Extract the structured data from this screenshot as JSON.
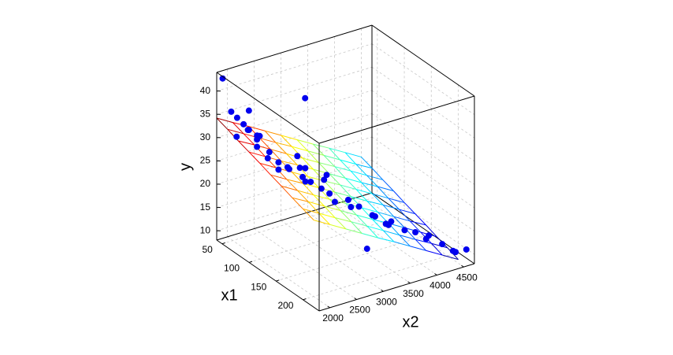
{
  "chart_data": {
    "type": "scatter3d",
    "x1label": "x1",
    "x2label": "x2",
    "ylabel": "y",
    "x1lim": [
      40,
      230
    ],
    "x2lim": [
      1800,
      4700
    ],
    "ylim": [
      8,
      44
    ],
    "x1ticks": [
      50,
      100,
      150,
      200
    ],
    "x2ticks": [
      2000,
      2500,
      3000,
      3500,
      4000,
      4500
    ],
    "yticks": [
      10,
      15,
      20,
      25,
      30,
      35,
      40
    ],
    "grid": true,
    "points": {
      "color": "#0000ee",
      "x1": [
        46,
        60,
        52,
        58,
        65,
        70,
        67,
        75,
        80,
        88,
        90,
        95,
        100,
        105,
        85,
        78,
        92,
        110,
        115,
        120,
        125,
        130,
        100,
        95,
        110,
        140,
        150,
        135,
        145,
        160,
        155,
        170,
        165,
        180,
        175,
        190,
        200,
        210,
        220,
        215,
        195,
        225,
        150,
        120,
        70,
        60,
        85
      ],
      "x2": [
        1850,
        3250,
        1950,
        2000,
        2050,
        2100,
        1900,
        2200,
        2150,
        2300,
        2250,
        2400,
        2350,
        2500,
        2100,
        2000,
        2600,
        2700,
        2800,
        2650,
        2900,
        3000,
        2750,
        2900,
        3100,
        3000,
        3200,
        3300,
        3400,
        3500,
        3600,
        3700,
        3800,
        3900,
        3600,
        4000,
        4100,
        4300,
        4400,
        4500,
        4200,
        4600,
        3500,
        2500,
        2300,
        2200,
        3400
      ],
      "y": [
        43,
        35,
        36,
        35,
        34,
        33,
        32,
        31,
        30,
        29,
        28,
        27,
        26,
        26,
        33,
        34,
        25,
        24,
        23,
        24,
        22,
        21,
        25,
        24,
        22,
        20,
        19,
        19,
        18,
        17,
        16,
        15,
        15,
        14,
        16,
        14,
        13,
        12,
        11,
        10,
        13,
        11,
        9,
        30,
        31,
        36,
        20
      ]
    },
    "surface": {
      "colormap": "jet",
      "x1": [
        40,
        60,
        80,
        100,
        120,
        140,
        160,
        180,
        200,
        220
      ],
      "x2": [
        1800,
        2100,
        2400,
        2700,
        3000,
        3300,
        3600,
        3900,
        4200,
        4500
      ],
      "y": [
        [
          34.2,
          32.2,
          30.3,
          28.3,
          26.3,
          24.3,
          22.3,
          20.4,
          18.4,
          16.4
        ],
        [
          33.4,
          31.4,
          29.4,
          27.4,
          25.5,
          23.5,
          21.5,
          19.5,
          17.5,
          15.6
        ],
        [
          32.5,
          30.6,
          28.6,
          26.6,
          24.6,
          22.6,
          20.7,
          18.7,
          16.7,
          14.7
        ],
        [
          31.7,
          29.7,
          27.7,
          25.8,
          23.8,
          21.8,
          19.8,
          17.8,
          15.9,
          13.9
        ],
        [
          30.9,
          28.9,
          26.9,
          24.9,
          22.9,
          21.0,
          19.0,
          17.0,
          15.0,
          13.0
        ],
        [
          30.0,
          28.0,
          26.1,
          24.1,
          22.1,
          20.1,
          18.1,
          16.2,
          14.2,
          12.2
        ],
        [
          29.2,
          27.2,
          25.2,
          23.2,
          21.3,
          19.3,
          17.3,
          15.3,
          13.3,
          11.4
        ],
        [
          28.3,
          26.4,
          24.4,
          22.4,
          20.4,
          18.4,
          16.5,
          14.5,
          12.5,
          10.5
        ],
        [
          27.5,
          25.5,
          23.5,
          21.6,
          19.6,
          17.6,
          15.6,
          13.6,
          11.7,
          9.7
        ],
        [
          26.7,
          24.7,
          22.7,
          20.7,
          18.7,
          16.8,
          14.8,
          12.8,
          10.8,
          8.8
        ]
      ]
    }
  }
}
